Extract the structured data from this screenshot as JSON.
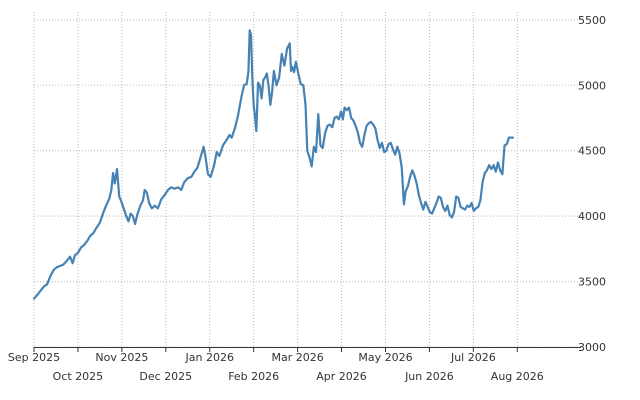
{
  "chart_data": {
    "type": "line",
    "title": "",
    "xlabel": "",
    "ylabel": "",
    "x_ticks": [
      "Sep 2025",
      "Oct 2025",
      "Nov 2025",
      "Dec 2025",
      "Jan 2026",
      "Feb 2026",
      "Mar 2026",
      "Apr 2026",
      "May 2026",
      "Jun 2026",
      "Jul 2026",
      "Aug 2026"
    ],
    "y_ticks": [
      3000,
      3500,
      4000,
      4500,
      5000,
      5500
    ],
    "xlim": [
      0,
      12.45
    ],
    "ylim": [
      3000,
      5560
    ],
    "grid": true,
    "line_color": "#4682b4",
    "series": [
      {
        "points": [
          [
            0.0,
            3370
          ],
          [
            0.08,
            3400
          ],
          [
            0.15,
            3430
          ],
          [
            0.22,
            3460
          ],
          [
            0.3,
            3480
          ],
          [
            0.37,
            3540
          ],
          [
            0.45,
            3590
          ],
          [
            0.52,
            3610
          ],
          [
            0.6,
            3620
          ],
          [
            0.67,
            3630
          ],
          [
            0.75,
            3660
          ],
          [
            0.82,
            3690
          ],
          [
            0.88,
            3640
          ],
          [
            0.93,
            3700
          ],
          [
            1.0,
            3720
          ],
          [
            1.07,
            3760
          ],
          [
            1.14,
            3780
          ],
          [
            1.21,
            3810
          ],
          [
            1.28,
            3850
          ],
          [
            1.35,
            3870
          ],
          [
            1.42,
            3910
          ],
          [
            1.5,
            3950
          ],
          [
            1.57,
            4020
          ],
          [
            1.64,
            4080
          ],
          [
            1.71,
            4130
          ],
          [
            1.76,
            4200
          ],
          [
            1.8,
            4330
          ],
          [
            1.84,
            4250
          ],
          [
            1.89,
            4360
          ],
          [
            1.94,
            4150
          ],
          [
            1.99,
            4110
          ],
          [
            2.05,
            4050
          ],
          [
            2.1,
            4000
          ],
          [
            2.15,
            3960
          ],
          [
            2.2,
            4020
          ],
          [
            2.25,
            4000
          ],
          [
            2.3,
            3940
          ],
          [
            2.35,
            4010
          ],
          [
            2.42,
            4080
          ],
          [
            2.48,
            4120
          ],
          [
            2.52,
            4200
          ],
          [
            2.57,
            4180
          ],
          [
            2.62,
            4100
          ],
          [
            2.68,
            4060
          ],
          [
            2.75,
            4080
          ],
          [
            2.82,
            4060
          ],
          [
            2.9,
            4130
          ],
          [
            2.97,
            4160
          ],
          [
            3.05,
            4200
          ],
          [
            3.12,
            4220
          ],
          [
            3.2,
            4210
          ],
          [
            3.28,
            4220
          ],
          [
            3.35,
            4200
          ],
          [
            3.42,
            4260
          ],
          [
            3.5,
            4290
          ],
          [
            3.58,
            4300
          ],
          [
            3.65,
            4340
          ],
          [
            3.72,
            4370
          ],
          [
            3.8,
            4460
          ],
          [
            3.86,
            4530
          ],
          [
            3.9,
            4460
          ],
          [
            3.96,
            4320
          ],
          [
            4.02,
            4300
          ],
          [
            4.1,
            4390
          ],
          [
            4.16,
            4490
          ],
          [
            4.22,
            4460
          ],
          [
            4.3,
            4540
          ],
          [
            4.38,
            4580
          ],
          [
            4.45,
            4620
          ],
          [
            4.5,
            4600
          ],
          [
            4.58,
            4680
          ],
          [
            4.65,
            4780
          ],
          [
            4.72,
            4910
          ],
          [
            4.78,
            5000
          ],
          [
            4.84,
            5010
          ],
          [
            4.88,
            5100
          ],
          [
            4.91,
            5420
          ],
          [
            4.94,
            5380
          ],
          [
            4.97,
            5050
          ],
          [
            5.0,
            4850
          ],
          [
            5.03,
            4760
          ],
          [
            5.06,
            4650
          ],
          [
            5.1,
            5020
          ],
          [
            5.14,
            5000
          ],
          [
            5.18,
            4900
          ],
          [
            5.22,
            5040
          ],
          [
            5.26,
            5060
          ],
          [
            5.3,
            5090
          ],
          [
            5.34,
            4990
          ],
          [
            5.38,
            4850
          ],
          [
            5.42,
            4950
          ],
          [
            5.46,
            5110
          ],
          [
            5.52,
            5000
          ],
          [
            5.58,
            5060
          ],
          [
            5.64,
            5240
          ],
          [
            5.7,
            5150
          ],
          [
            5.76,
            5280
          ],
          [
            5.82,
            5320
          ],
          [
            5.85,
            5110
          ],
          [
            5.88,
            5140
          ],
          [
            5.92,
            5100
          ],
          [
            5.96,
            5180
          ],
          [
            6.01,
            5100
          ],
          [
            6.07,
            5010
          ],
          [
            6.13,
            5000
          ],
          [
            6.18,
            4850
          ],
          [
            6.22,
            4500
          ],
          [
            6.27,
            4450
          ],
          [
            6.32,
            4380
          ],
          [
            6.37,
            4530
          ],
          [
            6.42,
            4490
          ],
          [
            6.47,
            4780
          ],
          [
            6.52,
            4540
          ],
          [
            6.57,
            4520
          ],
          [
            6.63,
            4640
          ],
          [
            6.68,
            4690
          ],
          [
            6.73,
            4700
          ],
          [
            6.79,
            4680
          ],
          [
            6.84,
            4750
          ],
          [
            6.89,
            4760
          ],
          [
            6.94,
            4740
          ],
          [
            6.99,
            4800
          ],
          [
            7.03,
            4740
          ],
          [
            7.07,
            4830
          ],
          [
            7.12,
            4810
          ],
          [
            7.17,
            4830
          ],
          [
            7.22,
            4750
          ],
          [
            7.27,
            4730
          ],
          [
            7.32,
            4690
          ],
          [
            7.37,
            4640
          ],
          [
            7.42,
            4560
          ],
          [
            7.47,
            4530
          ],
          [
            7.52,
            4620
          ],
          [
            7.57,
            4690
          ],
          [
            7.62,
            4710
          ],
          [
            7.67,
            4720
          ],
          [
            7.72,
            4700
          ],
          [
            7.77,
            4670
          ],
          [
            7.82,
            4580
          ],
          [
            7.87,
            4520
          ],
          [
            7.92,
            4560
          ],
          [
            7.97,
            4490
          ],
          [
            8.02,
            4500
          ],
          [
            8.07,
            4550
          ],
          [
            8.12,
            4560
          ],
          [
            8.17,
            4510
          ],
          [
            8.22,
            4470
          ],
          [
            8.27,
            4530
          ],
          [
            8.32,
            4480
          ],
          [
            8.37,
            4370
          ],
          [
            8.42,
            4090
          ],
          [
            8.46,
            4190
          ],
          [
            8.51,
            4230
          ],
          [
            8.56,
            4300
          ],
          [
            8.61,
            4350
          ],
          [
            8.66,
            4310
          ],
          [
            8.71,
            4250
          ],
          [
            8.76,
            4160
          ],
          [
            8.81,
            4100
          ],
          [
            8.86,
            4050
          ],
          [
            8.91,
            4110
          ],
          [
            8.96,
            4070
          ],
          [
            9.01,
            4030
          ],
          [
            9.06,
            4020
          ],
          [
            9.11,
            4060
          ],
          [
            9.16,
            4100
          ],
          [
            9.21,
            4150
          ],
          [
            9.26,
            4140
          ],
          [
            9.31,
            4070
          ],
          [
            9.36,
            4040
          ],
          [
            9.41,
            4080
          ],
          [
            9.46,
            4010
          ],
          [
            9.51,
            3990
          ],
          [
            9.56,
            4030
          ],
          [
            9.61,
            4150
          ],
          [
            9.66,
            4140
          ],
          [
            9.71,
            4070
          ],
          [
            9.76,
            4060
          ],
          [
            9.81,
            4050
          ],
          [
            9.86,
            4080
          ],
          [
            9.91,
            4070
          ],
          [
            9.96,
            4100
          ],
          [
            10.01,
            4040
          ],
          [
            10.06,
            4060
          ],
          [
            10.11,
            4070
          ],
          [
            10.16,
            4120
          ],
          [
            10.21,
            4260
          ],
          [
            10.26,
            4330
          ],
          [
            10.31,
            4350
          ],
          [
            10.36,
            4390
          ],
          [
            10.41,
            4360
          ],
          [
            10.46,
            4390
          ],
          [
            10.51,
            4340
          ],
          [
            10.56,
            4410
          ],
          [
            10.61,
            4350
          ],
          [
            10.66,
            4320
          ],
          [
            10.71,
            4540
          ],
          [
            10.76,
            4550
          ],
          [
            10.81,
            4600
          ],
          [
            10.86,
            4600
          ],
          [
            10.9,
            4600
          ]
        ]
      }
    ]
  }
}
